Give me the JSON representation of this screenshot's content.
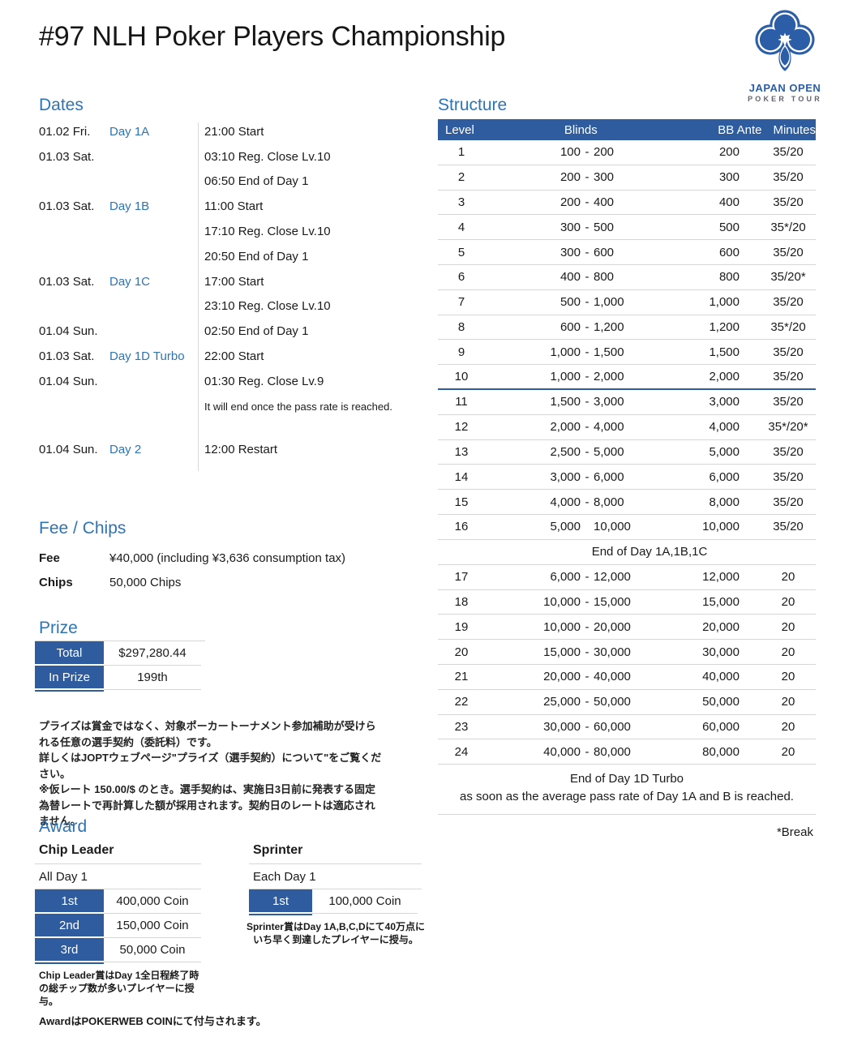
{
  "title": "#97 NLH Poker Players Championship",
  "logo": {
    "line1": "JAPAN OPEN",
    "line2": "POKER TOUR"
  },
  "colors": {
    "heading_blue": "#2e74b5",
    "table_header_blue": "#2e5c9e",
    "day_label_blue": "#2e74b5",
    "logo_blue": "#2b5ea7",
    "border_gray": "#d6d6d6",
    "text": "#1a1a1a"
  },
  "dates": {
    "heading": "Dates",
    "rows": [
      {
        "date": "01.02 Fri.",
        "day": "Day 1A",
        "event": "21:00 Start"
      },
      {
        "date": "01.03 Sat.",
        "day": "",
        "event": "03:10 Reg. Close Lv.10"
      },
      {
        "date": "",
        "day": "",
        "event": "06:50 End of Day 1"
      },
      {
        "date": "01.03 Sat.",
        "day": "Day 1B",
        "event": "11:00 Start"
      },
      {
        "date": "",
        "day": "",
        "event": "17:10 Reg. Close Lv.10"
      },
      {
        "date": "",
        "day": "",
        "event": "20:50 End of Day 1"
      },
      {
        "date": "01.03 Sat.",
        "day": "Day 1C",
        "event": "17:00 Start"
      },
      {
        "date": "",
        "day": "",
        "event": "23:10 Reg. Close Lv.10"
      },
      {
        "date": "01.04 Sun.",
        "day": "",
        "event": "02:50 End of Day 1"
      },
      {
        "date": "01.03 Sat.",
        "day": "Day 1D Turbo",
        "event": "22:00 Start"
      },
      {
        "date": "01.04 Sun.",
        "day": "",
        "event": "01:30 Reg. Close Lv.9"
      },
      {
        "date": "",
        "day": "",
        "event": "It will end once the pass rate is reached.",
        "small": true
      },
      {
        "spacer": true
      },
      {
        "date": "01.04 Sun.",
        "day": "Day 2",
        "event": "12:00 Restart"
      }
    ]
  },
  "structure": {
    "heading": "Structure",
    "header": {
      "level": "Level",
      "blinds": "Blinds",
      "bb_ante": "BB Ante",
      "minutes": "Minutes"
    },
    "rows": [
      {
        "level": "1",
        "sb": "100",
        "dash": "-",
        "bb": "200",
        "ante": "200",
        "min": "35/20"
      },
      {
        "level": "2",
        "sb": "200",
        "dash": "-",
        "bb": "300",
        "ante": "300",
        "min": "35/20"
      },
      {
        "level": "3",
        "sb": "200",
        "dash": "-",
        "bb": "400",
        "ante": "400",
        "min": "35/20"
      },
      {
        "level": "4",
        "sb": "300",
        "dash": "-",
        "bb": "500",
        "ante": "500",
        "min": "35*/20"
      },
      {
        "level": "5",
        "sb": "300",
        "dash": "-",
        "bb": "600",
        "ante": "600",
        "min": "35/20"
      },
      {
        "level": "6",
        "sb": "400",
        "dash": "-",
        "bb": "800",
        "ante": "800",
        "min": "35/20*"
      },
      {
        "level": "7",
        "sb": "500",
        "dash": "-",
        "bb": "1,000",
        "ante": "1,000",
        "min": "35/20"
      },
      {
        "level": "8",
        "sb": "600",
        "dash": "-",
        "bb": "1,200",
        "ante": "1,200",
        "min": "35*/20"
      },
      {
        "level": "9",
        "sb": "1,000",
        "dash": "-",
        "bb": "1,500",
        "ante": "1,500",
        "min": "35/20"
      },
      {
        "level": "10",
        "sb": "1,000",
        "dash": "-",
        "bb": "2,000",
        "ante": "2,000",
        "min": "35/20",
        "reg_close": true
      },
      {
        "level": "11",
        "sb": "1,500",
        "dash": "-",
        "bb": "3,000",
        "ante": "3,000",
        "min": "35/20"
      },
      {
        "level": "12",
        "sb": "2,000",
        "dash": "-",
        "bb": "4,000",
        "ante": "4,000",
        "min": "35*/20*"
      },
      {
        "level": "13",
        "sb": "2,500",
        "dash": "-",
        "bb": "5,000",
        "ante": "5,000",
        "min": "35/20"
      },
      {
        "level": "14",
        "sb": "3,000",
        "dash": "-",
        "bb": "6,000",
        "ante": "6,000",
        "min": "35/20"
      },
      {
        "level": "15",
        "sb": "4,000",
        "dash": "-",
        "bb": "8,000",
        "ante": "8,000",
        "min": "35/20"
      },
      {
        "level": "16",
        "sb": "5,000",
        "dash": "",
        "bb": "10,000",
        "ante": "10,000",
        "min": "35/20"
      },
      {
        "divider": "End of Day 1A,1B,1C"
      },
      {
        "level": "17",
        "sb": "6,000",
        "dash": "-",
        "bb": "12,000",
        "ante": "12,000",
        "min": "20"
      },
      {
        "level": "18",
        "sb": "10,000",
        "dash": "-",
        "bb": "15,000",
        "ante": "15,000",
        "min": "20"
      },
      {
        "level": "19",
        "sb": "10,000",
        "dash": "-",
        "bb": "20,000",
        "ante": "20,000",
        "min": "20"
      },
      {
        "level": "20",
        "sb": "15,000",
        "dash": "-",
        "bb": "30,000",
        "ante": "30,000",
        "min": "20"
      },
      {
        "level": "21",
        "sb": "20,000",
        "dash": "-",
        "bb": "40,000",
        "ante": "40,000",
        "min": "20"
      },
      {
        "level": "22",
        "sb": "25,000",
        "dash": "-",
        "bb": "50,000",
        "ante": "50,000",
        "min": "20"
      },
      {
        "level": "23",
        "sb": "30,000",
        "dash": "-",
        "bb": "60,000",
        "ante": "60,000",
        "min": "20"
      },
      {
        "level": "24",
        "sb": "40,000",
        "dash": "-",
        "bb": "80,000",
        "ante": "80,000",
        "min": "20"
      }
    ],
    "end_note_title": "End of Day 1D Turbo",
    "end_note_sub": "as soon as the average pass rate of Day 1A and B is reached.",
    "break_note": "*Break"
  },
  "fee_chips": {
    "heading": "Fee / Chips",
    "fee_label": "Fee",
    "fee_value": "¥40,000 (including ¥3,636 consumption tax)",
    "chips_label": "Chips",
    "chips_value": "50,000 Chips"
  },
  "prize": {
    "heading": "Prize",
    "rows": [
      {
        "label": "Total",
        "value": "$297,280.44"
      },
      {
        "label": "In Prize",
        "value": "199th"
      }
    ],
    "note_lines": [
      "プライズは賞金ではなく、対象ポーカートーナメント参加補助が受けられる任意の選手契約（委託料）です。",
      "詳しくはJOPTウェブページ\"プライズ（選手契約）について\"をご覧ください。",
      "※仮レート 150.00/$ のとき。選手契約は、実施日3日前に発表する固定為替レートで再計算した額が採用されます。契約日のレートは適応されません。"
    ]
  },
  "award": {
    "heading": "Award",
    "chip_leader": {
      "title": "Chip Leader",
      "subtitle": "All Day 1",
      "rows": [
        {
          "label": "1st",
          "value": "400,000 Coin"
        },
        {
          "label": "2nd",
          "value": "150,000 Coin"
        },
        {
          "label": "3rd",
          "value": "50,000 Coin"
        }
      ],
      "note": "Chip Leader賞はDay 1全日程終了時の総チップ数が多いプレイヤーに授与。"
    },
    "sprinter": {
      "title": "Sprinter",
      "subtitle": "Each Day 1",
      "rows": [
        {
          "label": "1st",
          "value": "100,000 Coin"
        }
      ],
      "note": "Sprinter賞はDay 1A,B,C,Dにて40万点にいち早く到達したプレイヤーに授与。"
    },
    "footer_note": "AwardはPOKERWEB COINにて付与されます。"
  }
}
